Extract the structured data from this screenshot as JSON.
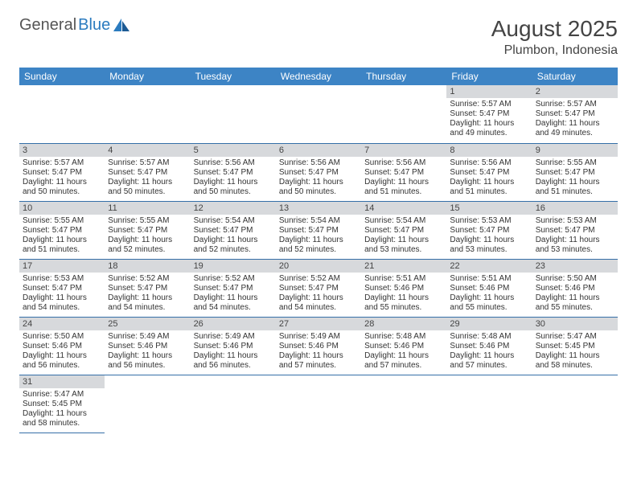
{
  "logo": {
    "text1": "General",
    "text2": "Blue"
  },
  "title": "August 2025",
  "location": "Plumbon, Indonesia",
  "colors": {
    "header_bg": "#3d84c5",
    "header_text": "#ffffff",
    "daynum_bg": "#d7d9dc",
    "row_border": "#356fa8",
    "logo_gray": "#555555",
    "logo_blue": "#2b7bbf"
  },
  "weekdays": [
    "Sunday",
    "Monday",
    "Tuesday",
    "Wednesday",
    "Thursday",
    "Friday",
    "Saturday"
  ],
  "grid": [
    [
      null,
      null,
      null,
      null,
      null,
      {
        "n": "1",
        "sr": "5:57 AM",
        "ss": "5:47 PM",
        "dl": "11 hours and 49 minutes."
      },
      {
        "n": "2",
        "sr": "5:57 AM",
        "ss": "5:47 PM",
        "dl": "11 hours and 49 minutes."
      }
    ],
    [
      {
        "n": "3",
        "sr": "5:57 AM",
        "ss": "5:47 PM",
        "dl": "11 hours and 50 minutes."
      },
      {
        "n": "4",
        "sr": "5:57 AM",
        "ss": "5:47 PM",
        "dl": "11 hours and 50 minutes."
      },
      {
        "n": "5",
        "sr": "5:56 AM",
        "ss": "5:47 PM",
        "dl": "11 hours and 50 minutes."
      },
      {
        "n": "6",
        "sr": "5:56 AM",
        "ss": "5:47 PM",
        "dl": "11 hours and 50 minutes."
      },
      {
        "n": "7",
        "sr": "5:56 AM",
        "ss": "5:47 PM",
        "dl": "11 hours and 51 minutes."
      },
      {
        "n": "8",
        "sr": "5:56 AM",
        "ss": "5:47 PM",
        "dl": "11 hours and 51 minutes."
      },
      {
        "n": "9",
        "sr": "5:55 AM",
        "ss": "5:47 PM",
        "dl": "11 hours and 51 minutes."
      }
    ],
    [
      {
        "n": "10",
        "sr": "5:55 AM",
        "ss": "5:47 PM",
        "dl": "11 hours and 51 minutes."
      },
      {
        "n": "11",
        "sr": "5:55 AM",
        "ss": "5:47 PM",
        "dl": "11 hours and 52 minutes."
      },
      {
        "n": "12",
        "sr": "5:54 AM",
        "ss": "5:47 PM",
        "dl": "11 hours and 52 minutes."
      },
      {
        "n": "13",
        "sr": "5:54 AM",
        "ss": "5:47 PM",
        "dl": "11 hours and 52 minutes."
      },
      {
        "n": "14",
        "sr": "5:54 AM",
        "ss": "5:47 PM",
        "dl": "11 hours and 53 minutes."
      },
      {
        "n": "15",
        "sr": "5:53 AM",
        "ss": "5:47 PM",
        "dl": "11 hours and 53 minutes."
      },
      {
        "n": "16",
        "sr": "5:53 AM",
        "ss": "5:47 PM",
        "dl": "11 hours and 53 minutes."
      }
    ],
    [
      {
        "n": "17",
        "sr": "5:53 AM",
        "ss": "5:47 PM",
        "dl": "11 hours and 54 minutes."
      },
      {
        "n": "18",
        "sr": "5:52 AM",
        "ss": "5:47 PM",
        "dl": "11 hours and 54 minutes."
      },
      {
        "n": "19",
        "sr": "5:52 AM",
        "ss": "5:47 PM",
        "dl": "11 hours and 54 minutes."
      },
      {
        "n": "20",
        "sr": "5:52 AM",
        "ss": "5:47 PM",
        "dl": "11 hours and 54 minutes."
      },
      {
        "n": "21",
        "sr": "5:51 AM",
        "ss": "5:46 PM",
        "dl": "11 hours and 55 minutes."
      },
      {
        "n": "22",
        "sr": "5:51 AM",
        "ss": "5:46 PM",
        "dl": "11 hours and 55 minutes."
      },
      {
        "n": "23",
        "sr": "5:50 AM",
        "ss": "5:46 PM",
        "dl": "11 hours and 55 minutes."
      }
    ],
    [
      {
        "n": "24",
        "sr": "5:50 AM",
        "ss": "5:46 PM",
        "dl": "11 hours and 56 minutes."
      },
      {
        "n": "25",
        "sr": "5:49 AM",
        "ss": "5:46 PM",
        "dl": "11 hours and 56 minutes."
      },
      {
        "n": "26",
        "sr": "5:49 AM",
        "ss": "5:46 PM",
        "dl": "11 hours and 56 minutes."
      },
      {
        "n": "27",
        "sr": "5:49 AM",
        "ss": "5:46 PM",
        "dl": "11 hours and 57 minutes."
      },
      {
        "n": "28",
        "sr": "5:48 AM",
        "ss": "5:46 PM",
        "dl": "11 hours and 57 minutes."
      },
      {
        "n": "29",
        "sr": "5:48 AM",
        "ss": "5:46 PM",
        "dl": "11 hours and 57 minutes."
      },
      {
        "n": "30",
        "sr": "5:47 AM",
        "ss": "5:45 PM",
        "dl": "11 hours and 58 minutes."
      }
    ],
    [
      {
        "n": "31",
        "sr": "5:47 AM",
        "ss": "5:45 PM",
        "dl": "11 hours and 58 minutes."
      },
      null,
      null,
      null,
      null,
      null,
      null
    ]
  ],
  "labels": {
    "sunrise": "Sunrise:",
    "sunset": "Sunset:",
    "daylight": "Daylight:"
  }
}
